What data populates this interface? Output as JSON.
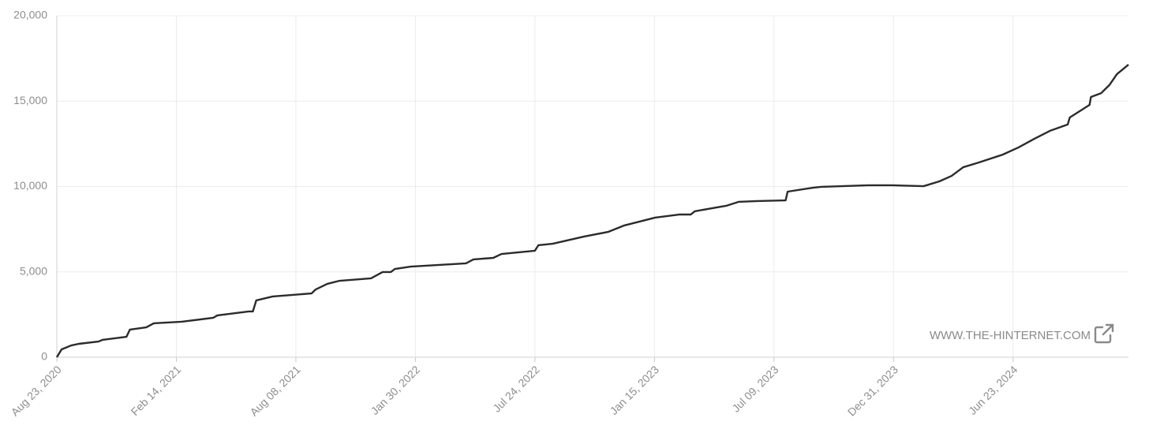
{
  "chart_data": {
    "type": "line",
    "watermark": "WWW.THE-HINTERNET.COM",
    "x": [
      "2020-08-23",
      "2020-08-30",
      "2020-09-13",
      "2020-09-24",
      "2020-10-23",
      "2020-10-29",
      "2020-12-03",
      "2020-12-08",
      "2021-01-01",
      "2021-01-12",
      "2021-02-22",
      "2021-04-09",
      "2021-04-15",
      "2021-05-31",
      "2021-06-06",
      "2021-06-11",
      "2021-07-05",
      "2021-08-31",
      "2021-09-06",
      "2021-09-23",
      "2021-10-11",
      "2021-11-26",
      "2021-12-13",
      "2021-12-25",
      "2021-12-31",
      "2022-01-23",
      "2022-04-14",
      "2022-04-25",
      "2022-05-24",
      "2022-06-05",
      "2022-07-24",
      "2022-07-29",
      "2022-08-19",
      "2022-10-04",
      "2022-11-08",
      "2022-12-01",
      "2023-01-16",
      "2023-02-20",
      "2023-03-09",
      "2023-03-15",
      "2023-04-30",
      "2023-05-18",
      "2023-06-15",
      "2023-07-26",
      "2023-07-29",
      "2023-09-04",
      "2023-09-16",
      "2023-11-24",
      "2023-12-29",
      "2024-02-13",
      "2024-03-07",
      "2024-03-25",
      "2024-04-11",
      "2024-05-04",
      "2024-06-08",
      "2024-07-01",
      "2024-07-24",
      "2024-08-16",
      "2024-09-11",
      "2024-09-14",
      "2024-10-13",
      "2024-10-15",
      "2024-10-30",
      "2024-11-11",
      "2024-11-22",
      "2024-12-09"
    ],
    "series": [
      {
        "color": "#2b2b2b",
        "values": [
          0,
          460,
          690,
          785,
          920,
          1020,
          1200,
          1620,
          1750,
          1990,
          2080,
          2310,
          2450,
          2680,
          2680,
          3330,
          3560,
          3740,
          3970,
          4300,
          4480,
          4620,
          4990,
          4990,
          5170,
          5310,
          5500,
          5730,
          5820,
          6050,
          6240,
          6560,
          6650,
          7070,
          7340,
          7710,
          8180,
          8360,
          8360,
          8550,
          8870,
          9100,
          9150,
          9190,
          9700,
          9930,
          9980,
          10070,
          10070,
          10020,
          10300,
          10620,
          11130,
          11410,
          11870,
          12290,
          12790,
          13260,
          13630,
          14040,
          14780,
          15240,
          15470,
          15940,
          16580,
          17140
        ]
      }
    ],
    "xlim": [
      "2020-08-23",
      "2024-12-09"
    ],
    "xticks": [
      {
        "value": "2020-08-23",
        "label": "Aug 23, 2020"
      },
      {
        "value": "2021-02-14",
        "label": "Feb 14, 2021"
      },
      {
        "value": "2021-08-08",
        "label": "Aug 08, 2021"
      },
      {
        "value": "2022-01-30",
        "label": "Jan 30, 2022"
      },
      {
        "value": "2022-07-24",
        "label": "Jul 24, 2022"
      },
      {
        "value": "2023-01-15",
        "label": "Jan 15, 2023"
      },
      {
        "value": "2023-07-09",
        "label": "Jul 09, 2023"
      },
      {
        "value": "2023-12-31",
        "label": "Dec 31, 2023"
      },
      {
        "value": "2024-06-23",
        "label": "Jun 23, 2024"
      }
    ],
    "ylim": [
      0,
      20000
    ],
    "yticks": [
      {
        "value": 0,
        "label": "0"
      },
      {
        "value": 5000,
        "label": "5,000"
      },
      {
        "value": 10000,
        "label": "10,000"
      },
      {
        "value": 15000,
        "label": "15,000"
      },
      {
        "value": 20000,
        "label": "20,000"
      }
    ],
    "grid": true
  }
}
